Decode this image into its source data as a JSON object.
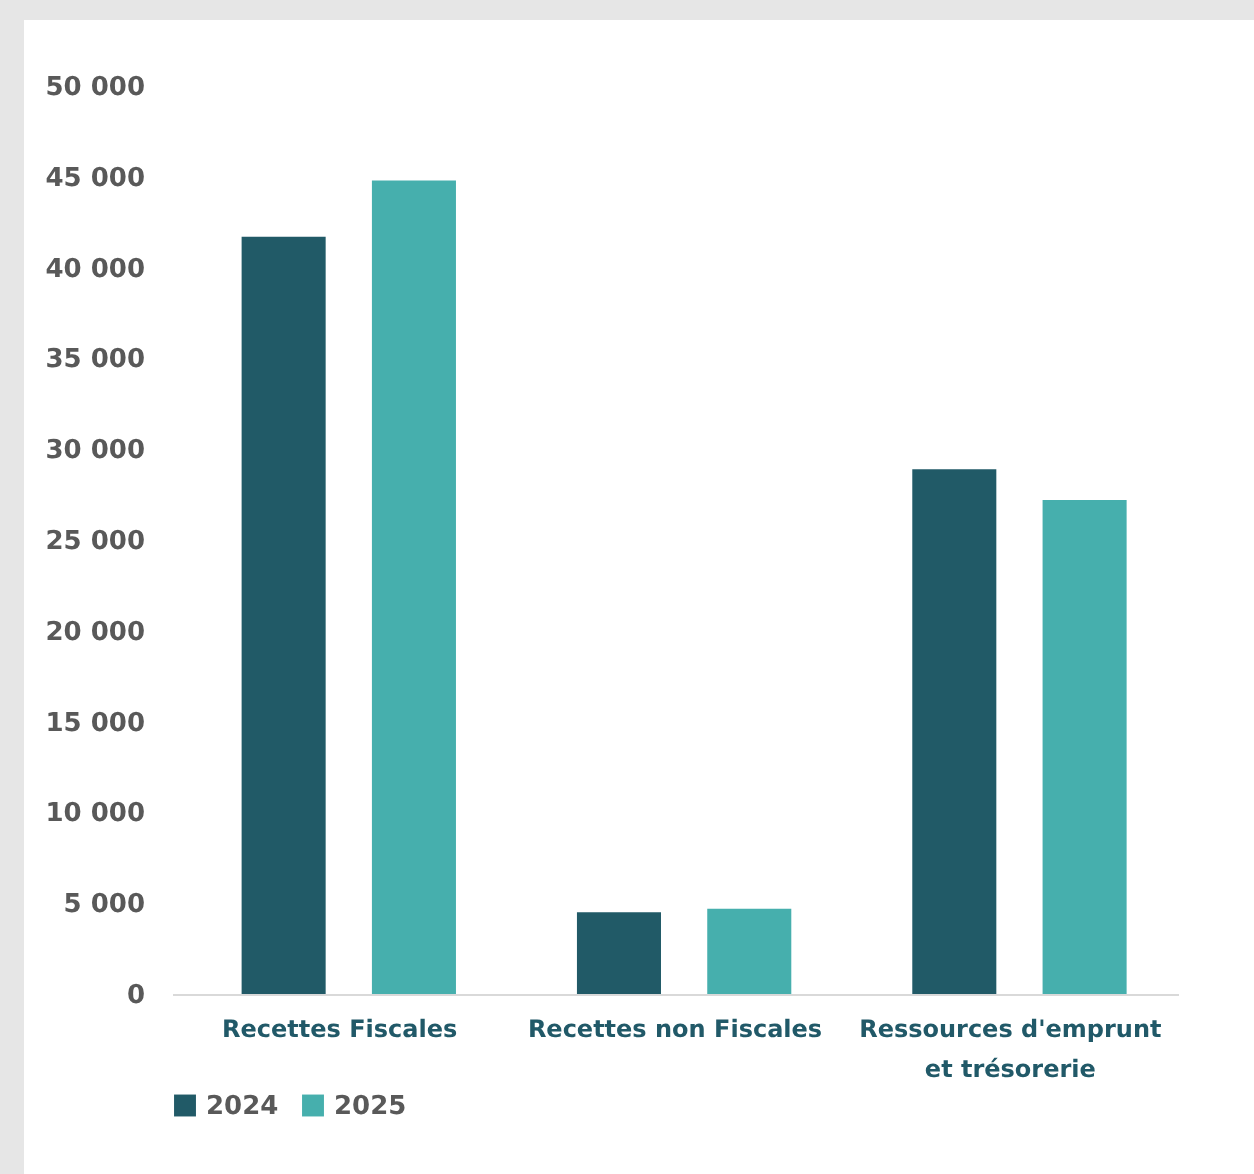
{
  "chart_data": {
    "type": "bar",
    "categories": [
      "Recettes Fiscales",
      "Recettes non Fiscales",
      "Ressources d'emprunt et trésorerie"
    ],
    "series": [
      {
        "name": "2024",
        "color": "#215a67",
        "values": [
          41700,
          4500,
          28900
        ]
      },
      {
        "name": "2025",
        "color": "#46afad",
        "values": [
          44800,
          4700,
          27200
        ]
      }
    ],
    "ylim": [
      0,
      50000
    ],
    "yticks": [
      {
        "value": 0,
        "label": "0"
      },
      {
        "value": 5000,
        "label": "5 000"
      },
      {
        "value": 10000,
        "label": "10 000"
      },
      {
        "value": 15000,
        "label": "15 000"
      },
      {
        "value": 20000,
        "label": "20 000"
      },
      {
        "value": 25000,
        "label": "25 000"
      },
      {
        "value": 30000,
        "label": "30 000"
      },
      {
        "value": 35000,
        "label": "35 000"
      },
      {
        "value": 40000,
        "label": "40 000"
      },
      {
        "value": 45000,
        "label": "45 000"
      },
      {
        "value": 50000,
        "label": "50 000"
      }
    ],
    "grid": false,
    "legend": "bottom"
  }
}
